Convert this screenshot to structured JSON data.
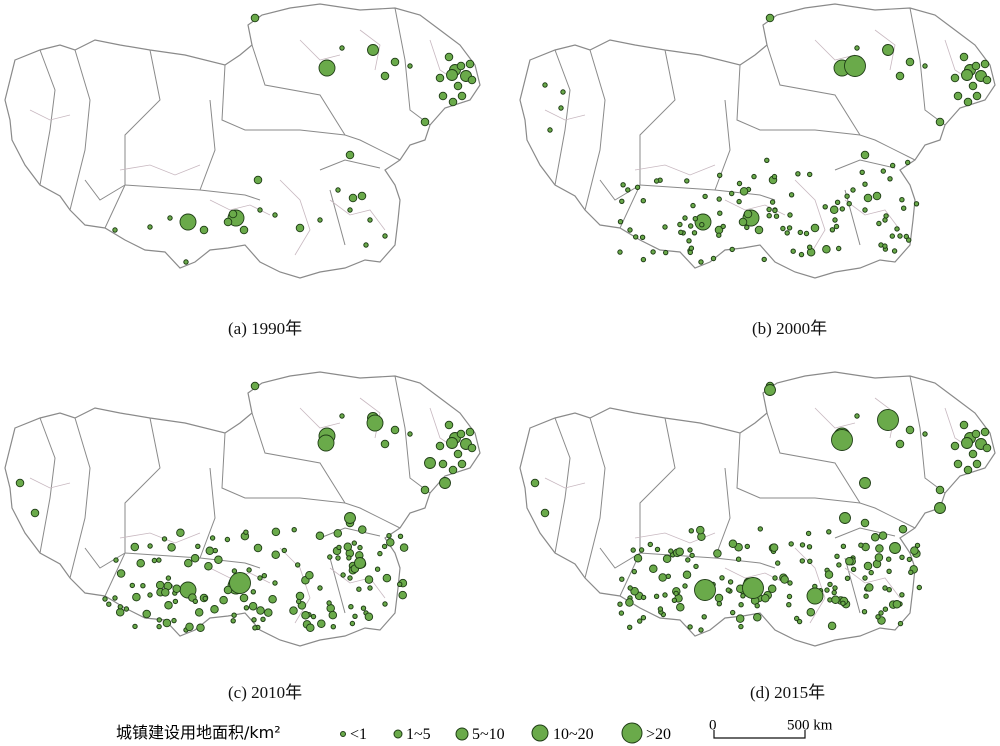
{
  "figure": {
    "panels": [
      {
        "id": "a",
        "caption": "(a) 1990年"
      },
      {
        "id": "b",
        "caption": "(b) 2000年"
      },
      {
        "id": "c",
        "caption": "(c) 2010年"
      },
      {
        "id": "d",
        "caption": "(d) 2015年"
      }
    ]
  },
  "legend": {
    "title": "城镇建设用地面积/km²",
    "classes": [
      "<1",
      "1~5",
      "5~10",
      "10~20",
      ">20"
    ]
  },
  "scale_bar": {
    "zero": "0",
    "end": "500 km"
  },
  "colors": {
    "fill": "#6aaa4a",
    "stroke": "#1f3d16",
    "border": "#8a8a8a",
    "inner_border": "#c8b8c0"
  }
}
